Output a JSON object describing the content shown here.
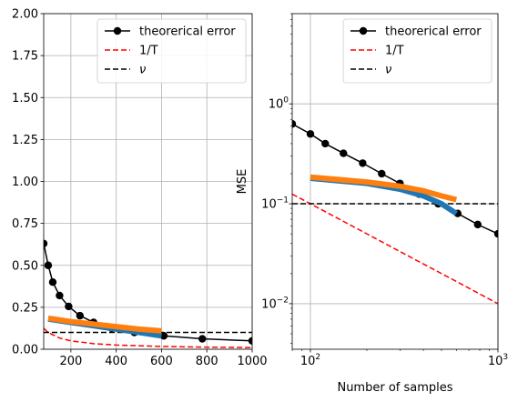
{
  "chart_data": [
    {
      "type": "line",
      "xscale": "linear",
      "yscale": "linear",
      "xlim": [
        80,
        1000
      ],
      "ylim": [
        0,
        2
      ],
      "grid": true,
      "legend_position": "upper right",
      "xticks": [
        200,
        400,
        600,
        800,
        1000
      ],
      "xtick_labels": [
        "200",
        "400",
        "600",
        "800",
        "1000"
      ],
      "yticks": [
        0,
        0.25,
        0.5,
        0.75,
        1.0,
        1.25,
        1.5,
        1.75,
        2.0
      ],
      "ytick_labels": [
        "0.00",
        "0.25",
        "0.50",
        "0.75",
        "1.00",
        "1.25",
        "1.50",
        "1.75",
        "2.00"
      ],
      "xlabel": "",
      "ylabel": "",
      "legend": [
        "theorerical error",
        "1/T",
        "ν"
      ],
      "series": [
        {
          "name": "theorerical error",
          "color": "#000000",
          "style": "solid",
          "marker": "circle",
          "x": [
            80,
            100,
            120,
            150,
            190,
            240,
            300,
            380,
            480,
            610,
            780,
            1000
          ],
          "y": [
            0.63,
            0.5,
            0.4,
            0.32,
            0.255,
            0.2,
            0.16,
            0.125,
            0.1,
            0.08,
            0.062,
            0.05
          ]
        },
        {
          "name": "1/T",
          "color": "#ff0000",
          "style": "dashed",
          "x": [
            80,
            100,
            150,
            200,
            300,
            400,
            600,
            800,
            1000
          ],
          "y": [
            0.125,
            0.1,
            0.0667,
            0.05,
            0.0333,
            0.025,
            0.0167,
            0.0125,
            0.01
          ]
        },
        {
          "name": "ν",
          "color": "#000000",
          "style": "dashed",
          "x": [
            80,
            1000
          ],
          "y": [
            0.1,
            0.1
          ]
        },
        {
          "color": "#1f77b4",
          "style": "thick",
          "x": [
            100,
            200,
            300,
            400,
            500,
            600
          ],
          "y": [
            0.18,
            0.16,
            0.14,
            0.12,
            0.1,
            0.08
          ]
        },
        {
          "color": "#ff7f0e",
          "style": "thick",
          "x": [
            100,
            200,
            300,
            400,
            500,
            600
          ],
          "y": [
            0.185,
            0.165,
            0.15,
            0.135,
            0.12,
            0.11
          ]
        }
      ]
    },
    {
      "type": "line",
      "xscale": "log",
      "yscale": "log",
      "xlim": [
        80,
        1000
      ],
      "ylim": [
        0.0035,
        8
      ],
      "grid": true,
      "legend_position": "upper right",
      "xticks": [
        100,
        1000
      ],
      "xtick_labels": [
        "10",
        "10"
      ],
      "xtick_exponents": [
        "2",
        "3"
      ],
      "yticks": [
        0.01,
        0.1,
        1
      ],
      "ytick_labels": [
        "10",
        "10",
        "10"
      ],
      "ytick_exponents": [
        "−2",
        "−1",
        "0"
      ],
      "xlabel": "Number of samples",
      "ylabel": "MSE",
      "legend": [
        "theorerical error",
        "1/T",
        "ν"
      ],
      "series": [
        {
          "name": "theorerical error",
          "color": "#000000",
          "style": "solid",
          "marker": "circle",
          "x": [
            80,
            100,
            120,
            150,
            190,
            240,
            300,
            380,
            480,
            610,
            780,
            1000
          ],
          "y": [
            0.63,
            0.5,
            0.4,
            0.32,
            0.255,
            0.2,
            0.16,
            0.125,
            0.1,
            0.08,
            0.062,
            0.05
          ]
        },
        {
          "name": "1/T",
          "color": "#ff0000",
          "style": "dashed",
          "x": [
            80,
            100,
            150,
            200,
            300,
            400,
            600,
            800,
            1000
          ],
          "y": [
            0.125,
            0.1,
            0.0667,
            0.05,
            0.0333,
            0.025,
            0.0167,
            0.0125,
            0.01
          ]
        },
        {
          "name": "ν",
          "color": "#000000",
          "style": "dashed",
          "x": [
            80,
            1000
          ],
          "y": [
            0.1,
            0.1
          ]
        },
        {
          "color": "#1f77b4",
          "style": "thick",
          "x": [
            100,
            200,
            300,
            400,
            500,
            600
          ],
          "y": [
            0.18,
            0.16,
            0.14,
            0.12,
            0.1,
            0.08
          ]
        },
        {
          "color": "#ff7f0e",
          "style": "thick",
          "x": [
            100,
            200,
            300,
            400,
            500,
            600
          ],
          "y": [
            0.185,
            0.165,
            0.15,
            0.135,
            0.12,
            0.11
          ]
        }
      ]
    }
  ]
}
